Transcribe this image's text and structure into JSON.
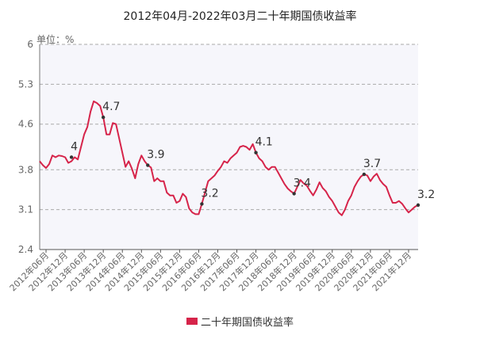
{
  "chart_data": {
    "type": "line",
    "title": "2012年04月-2022年03月二十年期国债收益率",
    "unit_label": "单位：%",
    "ylim": [
      2.4,
      6
    ],
    "y_ticks": [
      6,
      5.3,
      4.6,
      3.8,
      3.1,
      2.4
    ],
    "grid": true,
    "legend_position": "bottom",
    "colors": {
      "line": "#d6244a",
      "grid": "#aaaaaa",
      "plot_bg": "#f6f6fb",
      "marker": "#333333"
    },
    "x_tick_labels": [
      "2012年06月",
      "2012年12月",
      "2013年06月",
      "2013年12月",
      "2014年06月",
      "2014年12月",
      "2015年06月",
      "2015年12月",
      "2016年06月",
      "2016年12月",
      "2017年06月",
      "2017年12月",
      "2018年06月",
      "2018年12月",
      "2019年06月",
      "2019年12月",
      "2020年06月",
      "2020年12月",
      "2021年06月",
      "2021年12月"
    ],
    "x_ticks_months": [
      "2012-06",
      "2012-12",
      "2013-06",
      "2013-12",
      "2014-06",
      "2014-12",
      "2015-06",
      "2015-12",
      "2016-06",
      "2016-12",
      "2017-06",
      "2017-12",
      "2018-06",
      "2018-12",
      "2019-06",
      "2019-12",
      "2020-06",
      "2020-12",
      "2021-06",
      "2021-12"
    ],
    "series": [
      {
        "name": "二十年期国债收益率",
        "points": [
          [
            "2012-04",
            3.95
          ],
          [
            "2012-05",
            3.88
          ],
          [
            "2012-06",
            3.83
          ],
          [
            "2012-07",
            3.9
          ],
          [
            "2012-08",
            4.05
          ],
          [
            "2012-09",
            4.02
          ],
          [
            "2012-10",
            4.05
          ],
          [
            "2012-11",
            4.04
          ],
          [
            "2012-12",
            4.02
          ],
          [
            "2013-01",
            3.92
          ],
          [
            "2013-02",
            3.95
          ],
          [
            "2013-03",
            4.02
          ],
          [
            "2013-04",
            3.98
          ],
          [
            "2013-05",
            4.2
          ],
          [
            "2013-06",
            4.42
          ],
          [
            "2013-07",
            4.55
          ],
          [
            "2013-08",
            4.82
          ],
          [
            "2013-09",
            5.0
          ],
          [
            "2013-10",
            4.97
          ],
          [
            "2013-11",
            4.92
          ],
          [
            "2013-12",
            4.72
          ],
          [
            "2014-01",
            4.42
          ],
          [
            "2014-02",
            4.42
          ],
          [
            "2014-03",
            4.62
          ],
          [
            "2014-04",
            4.6
          ],
          [
            "2014-05",
            4.35
          ],
          [
            "2014-06",
            4.1
          ],
          [
            "2014-07",
            3.85
          ],
          [
            "2014-08",
            3.95
          ],
          [
            "2014-09",
            3.82
          ],
          [
            "2014-10",
            3.65
          ],
          [
            "2014-11",
            3.9
          ],
          [
            "2014-12",
            4.05
          ],
          [
            "2015-01",
            3.95
          ],
          [
            "2015-02",
            3.88
          ],
          [
            "2015-03",
            3.84
          ],
          [
            "2015-04",
            3.6
          ],
          [
            "2015-05",
            3.65
          ],
          [
            "2015-06",
            3.6
          ],
          [
            "2015-07",
            3.6
          ],
          [
            "2015-08",
            3.4
          ],
          [
            "2015-09",
            3.35
          ],
          [
            "2015-10",
            3.35
          ],
          [
            "2015-11",
            3.22
          ],
          [
            "2015-12",
            3.25
          ],
          [
            "2016-01",
            3.38
          ],
          [
            "2016-02",
            3.32
          ],
          [
            "2016-03",
            3.12
          ],
          [
            "2016-04",
            3.05
          ],
          [
            "2016-05",
            3.02
          ],
          [
            "2016-06",
            3.02
          ],
          [
            "2016-07",
            3.2
          ],
          [
            "2016-08",
            3.4
          ],
          [
            "2016-09",
            3.6
          ],
          [
            "2016-10",
            3.65
          ],
          [
            "2016-11",
            3.7
          ],
          [
            "2016-12",
            3.78
          ],
          [
            "2017-01",
            3.85
          ],
          [
            "2017-02",
            3.95
          ],
          [
            "2017-03",
            3.92
          ],
          [
            "2017-04",
            4.0
          ],
          [
            "2017-05",
            4.05
          ],
          [
            "2017-06",
            4.1
          ],
          [
            "2017-07",
            4.2
          ],
          [
            "2017-08",
            4.22
          ],
          [
            "2017-09",
            4.2
          ],
          [
            "2017-10",
            4.15
          ],
          [
            "2017-11",
            4.25
          ],
          [
            "2017-12",
            4.1
          ],
          [
            "2018-01",
            4.0
          ],
          [
            "2018-02",
            3.95
          ],
          [
            "2018-03",
            3.85
          ],
          [
            "2018-04",
            3.8
          ],
          [
            "2018-05",
            3.85
          ],
          [
            "2018-06",
            3.85
          ],
          [
            "2018-07",
            3.75
          ],
          [
            "2018-08",
            3.65
          ],
          [
            "2018-09",
            3.55
          ],
          [
            "2018-10",
            3.47
          ],
          [
            "2018-11",
            3.42
          ],
          [
            "2018-12",
            3.38
          ],
          [
            "2019-01",
            3.5
          ],
          [
            "2019-02",
            3.62
          ],
          [
            "2019-03",
            3.56
          ],
          [
            "2019-04",
            3.52
          ],
          [
            "2019-05",
            3.43
          ],
          [
            "2019-06",
            3.35
          ],
          [
            "2019-07",
            3.45
          ],
          [
            "2019-08",
            3.58
          ],
          [
            "2019-09",
            3.48
          ],
          [
            "2019-10",
            3.42
          ],
          [
            "2019-11",
            3.32
          ],
          [
            "2019-12",
            3.25
          ],
          [
            "2020-01",
            3.15
          ],
          [
            "2020-02",
            3.05
          ],
          [
            "2020-03",
            3.0
          ],
          [
            "2020-04",
            3.1
          ],
          [
            "2020-05",
            3.25
          ],
          [
            "2020-06",
            3.35
          ],
          [
            "2020-07",
            3.5
          ],
          [
            "2020-08",
            3.6
          ],
          [
            "2020-09",
            3.68
          ],
          [
            "2020-10",
            3.72
          ],
          [
            "2020-11",
            3.7
          ],
          [
            "2020-12",
            3.6
          ],
          [
            "2021-01",
            3.68
          ],
          [
            "2021-02",
            3.73
          ],
          [
            "2021-03",
            3.62
          ],
          [
            "2021-04",
            3.55
          ],
          [
            "2021-05",
            3.5
          ],
          [
            "2021-06",
            3.35
          ],
          [
            "2021-07",
            3.22
          ],
          [
            "2021-08",
            3.22
          ],
          [
            "2021-09",
            3.25
          ],
          [
            "2021-10",
            3.2
          ],
          [
            "2021-11",
            3.12
          ],
          [
            "2021-12",
            3.05
          ],
          [
            "2022-01",
            3.1
          ],
          [
            "2022-02",
            3.15
          ],
          [
            "2022-03",
            3.18
          ]
        ]
      }
    ],
    "annotations": [
      {
        "x": "2013-02",
        "y": 4.02,
        "label": "4"
      },
      {
        "x": "2013-12",
        "y": 4.72,
        "label": "4.7"
      },
      {
        "x": "2015-02",
        "y": 3.88,
        "label": "3.9"
      },
      {
        "x": "2016-07",
        "y": 3.2,
        "label": "3.2"
      },
      {
        "x": "2017-12",
        "y": 4.1,
        "label": "4.1"
      },
      {
        "x": "2018-12",
        "y": 3.38,
        "label": "3.4"
      },
      {
        "x": "2020-10",
        "y": 3.72,
        "label": "3.7"
      },
      {
        "x": "2022-03",
        "y": 3.18,
        "label": "3.2"
      }
    ]
  }
}
